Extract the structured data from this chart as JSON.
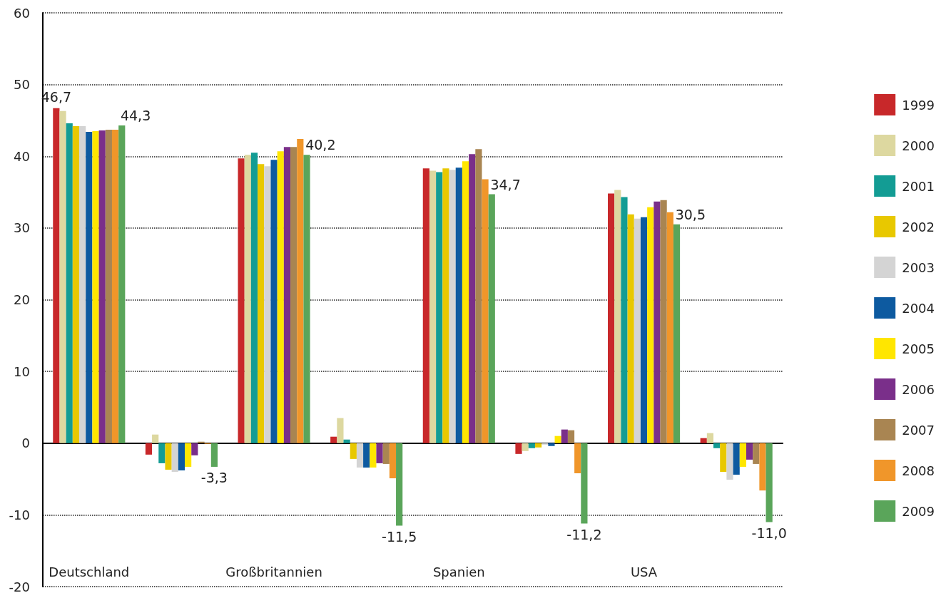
{
  "chart_data": {
    "type": "bar",
    "categories": [
      "Deutschland",
      null,
      "Großbritannien",
      null,
      "Spanien",
      null,
      "USA",
      null
    ],
    "series": [
      {
        "name": "1999",
        "color": "#c8282a",
        "values": [
          46.7,
          -1.6,
          39.7,
          0.9,
          38.3,
          -1.5,
          34.8,
          0.7
        ],
        "value_labels": [
          "46,7",
          null,
          null,
          null,
          null,
          null,
          null,
          null
        ]
      },
      {
        "name": "2000",
        "color": "#ddd8a0",
        "values": [
          46.3,
          1.2,
          40.2,
          3.5,
          38.0,
          -1.1,
          35.3,
          1.4
        ]
      },
      {
        "name": "2001",
        "color": "#139c94",
        "values": [
          44.6,
          -2.8,
          40.5,
          0.5,
          37.8,
          -0.7,
          34.3,
          -0.7
        ]
      },
      {
        "name": "2002",
        "color": "#e8c800",
        "values": [
          44.2,
          -3.7,
          38.9,
          -2.2,
          38.3,
          -0.6,
          31.9,
          -4.0
        ]
      },
      {
        "name": "2003",
        "color": "#d4d4d4",
        "values": [
          44.2,
          -4.0,
          38.6,
          -3.4,
          38.1,
          -0.2,
          31.3,
          -5.1
        ]
      },
      {
        "name": "2004",
        "color": "#0d5aa0",
        "values": [
          43.4,
          -3.8,
          39.5,
          -3.4,
          38.4,
          -0.4,
          31.5,
          -4.4
        ]
      },
      {
        "name": "2005",
        "color": "#ffe600",
        "values": [
          43.5,
          -3.3,
          40.7,
          -3.4,
          39.3,
          1.0,
          32.9,
          -3.3
        ]
      },
      {
        "name": "2006",
        "color": "#7a2f8a",
        "values": [
          43.6,
          -1.7,
          41.3,
          -2.8,
          40.3,
          1.9,
          33.7,
          -2.3
        ]
      },
      {
        "name": "2007",
        "color": "#a98552",
        "values": [
          43.7,
          0.2,
          41.3,
          -2.9,
          41.0,
          1.8,
          33.9,
          -2.9
        ]
      },
      {
        "name": "2008",
        "color": "#f0962a",
        "values": [
          43.7,
          -0.1,
          42.4,
          -4.9,
          36.8,
          -4.2,
          32.2,
          -6.6
        ]
      },
      {
        "name": "2009",
        "color": "#5aa55a",
        "values": [
          44.3,
          -3.3,
          40.2,
          -11.5,
          34.7,
          -11.2,
          30.5,
          -11.0
        ],
        "value_labels": [
          "44,3",
          "-3,3",
          "40,2",
          "-11,5",
          "34,7",
          "-11,2",
          "30,5",
          "-11,0"
        ]
      }
    ],
    "ylim": [
      -20,
      60
    ],
    "yticks": [
      -20,
      -10,
      0,
      10,
      20,
      30,
      40,
      50,
      60
    ],
    "grid": "y",
    "legend": "right"
  }
}
